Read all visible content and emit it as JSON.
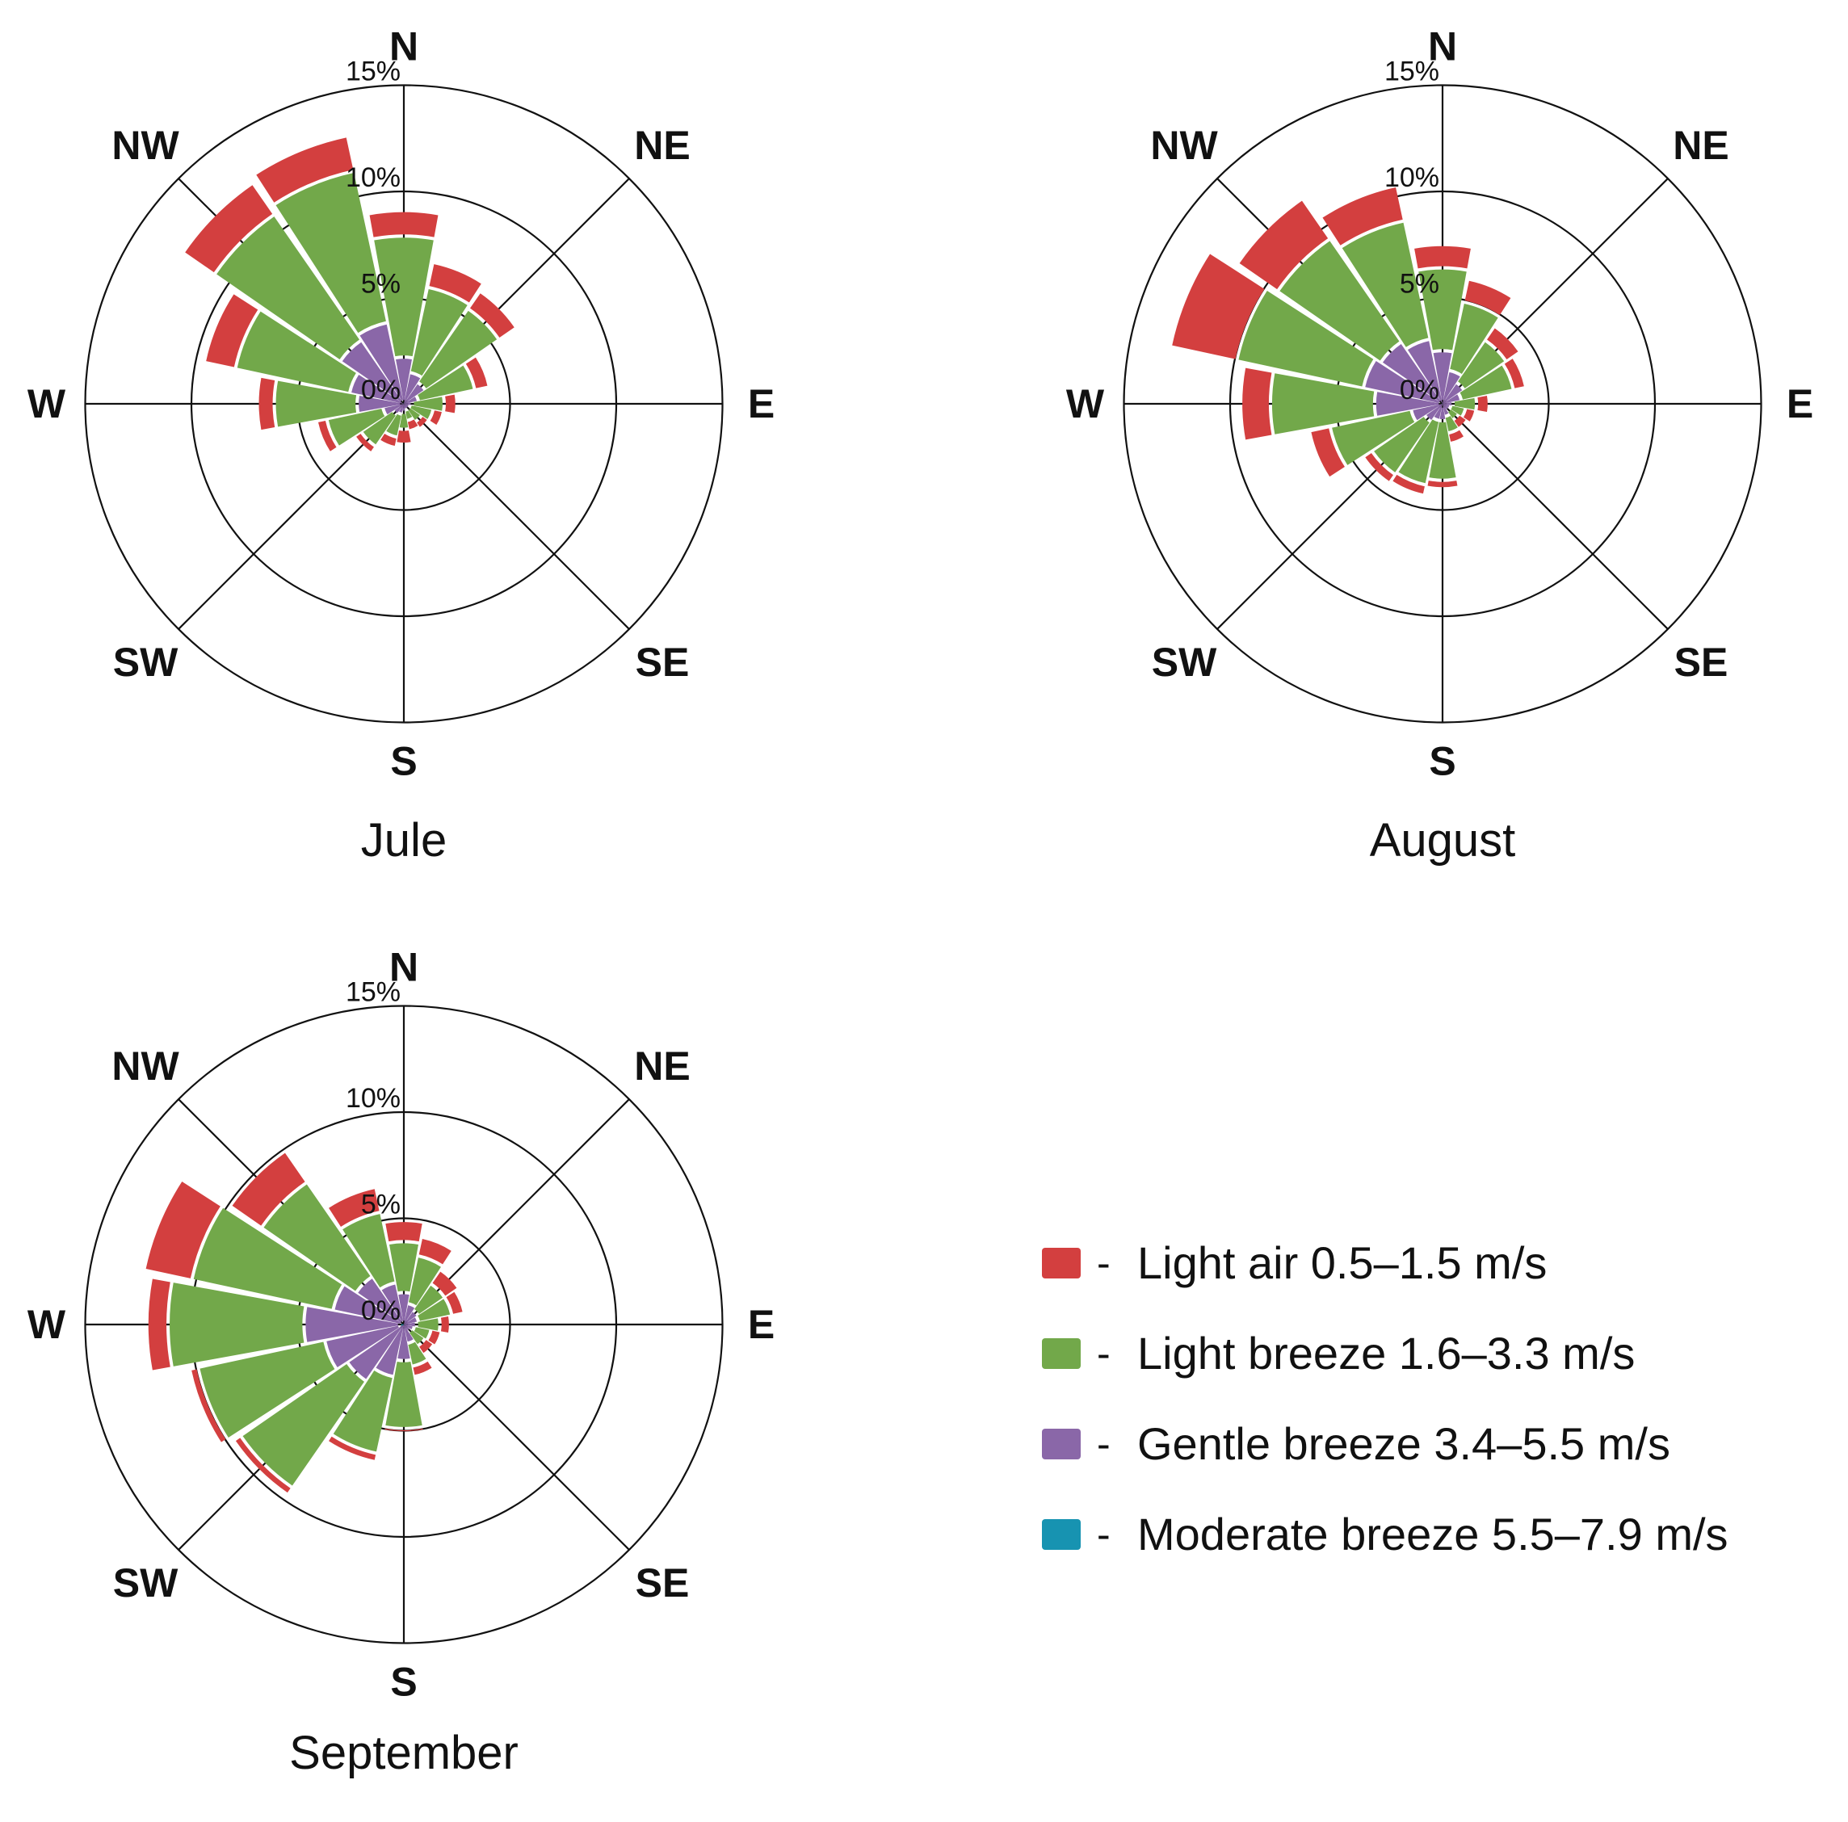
{
  "chart_data": [
    {
      "type": "wind-rose",
      "title": "Jule",
      "directions": [
        "N",
        "NNE",
        "NE",
        "ENE",
        "E",
        "ESE",
        "SE",
        "SSE",
        "S",
        "SSW",
        "SW",
        "WSW",
        "W",
        "WNW",
        "NW",
        "NNW"
      ],
      "compass_labels": [
        "N",
        "NE",
        "E",
        "SE",
        "S",
        "SW",
        "W",
        "NW"
      ],
      "ring_labels": [
        "0%",
        "5%",
        "10%",
        "15%"
      ],
      "rlim": [
        0,
        15
      ],
      "series": [
        {
          "name": "Moderate breeze",
          "values": [
            0.1,
            0,
            0,
            0,
            0,
            0,
            0,
            0,
            0,
            0,
            0,
            0,
            0.1,
            0,
            0.1,
            0.1
          ]
        },
        {
          "name": "Gentle breeze",
          "values": [
            2.1,
            1.5,
            1.2,
            0.7,
            0.4,
            0.3,
            0.3,
            0.3,
            0.4,
            0.5,
            0.6,
            1.0,
            2.1,
            2.6,
            3.5,
            3.8
          ]
        },
        {
          "name": "Light breeze",
          "values": [
            5.7,
            4.1,
            4.2,
            2.7,
            1.5,
            1.1,
            0.7,
            0.5,
            0.8,
            1.1,
            1.8,
            2.7,
            3.9,
            5.5,
            7.2,
            7.3
          ]
        },
        {
          "name": "Light air",
          "values": [
            1.2,
            1.2,
            1.0,
            0.7,
            0.6,
            0.5,
            0.4,
            0.5,
            0.7,
            0.5,
            0.4,
            0.5,
            0.8,
            1.5,
            1.8,
            1.7
          ]
        }
      ]
    },
    {
      "type": "wind-rose",
      "title": "August",
      "directions": [
        "N",
        "NNE",
        "NE",
        "ENE",
        "E",
        "ESE",
        "SE",
        "SSE",
        "S",
        "SSW",
        "SW",
        "WSW",
        "W",
        "WNW",
        "NW",
        "NNW"
      ],
      "compass_labels": [
        "N",
        "NE",
        "E",
        "SE",
        "S",
        "SW",
        "W",
        "NW"
      ],
      "ring_labels": [
        "0%",
        "5%",
        "10%",
        "15%"
      ],
      "rlim": [
        0,
        15
      ],
      "series": [
        {
          "name": "Moderate breeze",
          "values": [
            0.1,
            0,
            0,
            0,
            0,
            0,
            0,
            0,
            0.1,
            0,
            0,
            0,
            0.1,
            0.1,
            0.1,
            0
          ]
        },
        {
          "name": "Gentle breeze",
          "values": [
            2.4,
            1.6,
            1.2,
            0.9,
            0.5,
            0.4,
            0.4,
            0.6,
            0.7,
            0.8,
            1.0,
            1.5,
            3.1,
            3.7,
            3.4,
            3.1
          ]
        },
        {
          "name": "Light breeze",
          "values": [
            3.9,
            3.3,
            2.4,
            2.5,
            1.1,
            0.7,
            0.5,
            0.8,
            2.8,
            3.1,
            3.0,
            3.9,
            4.9,
            6.1,
            5.9,
            5.7
          ]
        },
        {
          "name": "Light air",
          "values": [
            1.1,
            1.1,
            0.8,
            0.6,
            0.6,
            0.5,
            0.5,
            0.5,
            0.4,
            0.5,
            0.5,
            1.0,
            1.4,
            3.2,
            2.3,
            1.7
          ]
        }
      ]
    },
    {
      "type": "wind-rose",
      "title": "September",
      "directions": [
        "N",
        "NNE",
        "NE",
        "ENE",
        "E",
        "ESE",
        "SE",
        "SSE",
        "S",
        "SSW",
        "SW",
        "WSW",
        "W",
        "WNW",
        "NW",
        "NNW"
      ],
      "compass_labels": [
        "N",
        "NE",
        "E",
        "SE",
        "S",
        "SW",
        "W",
        "NW"
      ],
      "ring_labels": [
        "0%",
        "5%",
        "10%",
        "15%"
      ],
      "rlim": [
        0,
        15
      ],
      "series": [
        {
          "name": "Moderate breeze",
          "values": [
            0.1,
            0,
            0,
            0,
            0,
            0,
            0,
            0,
            0,
            0,
            0,
            0.2,
            0.2,
            0.1,
            0.1,
            0.1
          ]
        },
        {
          "name": "Gentle breeze",
          "values": [
            1.4,
            1.0,
            0.8,
            0.7,
            0.6,
            0.5,
            0.4,
            0.9,
            1.7,
            2.5,
            3.2,
            3.6,
            4.5,
            3.3,
            2.6,
            1.9
          ]
        },
        {
          "name": "Light breeze",
          "values": [
            2.4,
            2.3,
            1.5,
            1.6,
            1.1,
            0.8,
            0.8,
            1.1,
            3.2,
            3.7,
            6.1,
            6.1,
            6.4,
            6.8,
            5.4,
            3.4
          ]
        },
        {
          "name": "Light air",
          "values": [
            1.0,
            0.9,
            0.8,
            0.6,
            0.5,
            0.5,
            0.5,
            0.5,
            0.2,
            0.4,
            0.4,
            0.4,
            1.0,
            2.3,
            1.8,
            1.2
          ]
        }
      ]
    }
  ],
  "legend": [
    {
      "label": "Light air 0.5–1.5 m/s",
      "color": "#d33f3f"
    },
    {
      "label": "Light breeze 1.6–3.3 m/s",
      "color": "#72a84a"
    },
    {
      "label": "Gentle breeze 3.4–5.5 m/s",
      "color": "#8a67a8"
    },
    {
      "label": "Moderate breeze 5.5–7.9 m/s",
      "color": "#1793b1"
    }
  ],
  "legend_dash": "-"
}
